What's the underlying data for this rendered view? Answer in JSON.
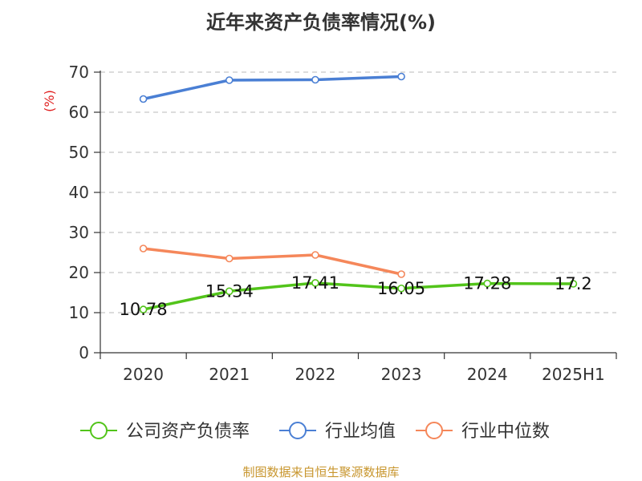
{
  "chart_data": {
    "type": "line",
    "title": "近年来资产负债率情况(%)",
    "ylabel": "(%)",
    "xlabel": "",
    "categories": [
      "2020",
      "2021",
      "2022",
      "2023",
      "2024",
      "2025H1"
    ],
    "ylim": [
      0,
      70
    ],
    "yticks": [
      0,
      10,
      20,
      30,
      40,
      50,
      60,
      70
    ],
    "grid": true,
    "legend_position": "bottom",
    "series": [
      {
        "name": "公司资产负债率",
        "color": "#52c41a",
        "values": [
          10.78,
          15.34,
          17.41,
          16.05,
          17.28,
          17.2
        ],
        "labels": [
          "10.78",
          "15.34",
          "17.41",
          "16.05",
          "17.28",
          "17.2"
        ]
      },
      {
        "name": "行业均值",
        "color": "#4a7fd4",
        "values": [
          63.3,
          68.0,
          68.1,
          68.9,
          null,
          null
        ]
      },
      {
        "name": "行业中位数",
        "color": "#f5875a",
        "values": [
          26.0,
          23.5,
          24.4,
          19.6,
          null,
          null
        ]
      }
    ]
  },
  "source": "制图数据来自恒生聚源数据库"
}
